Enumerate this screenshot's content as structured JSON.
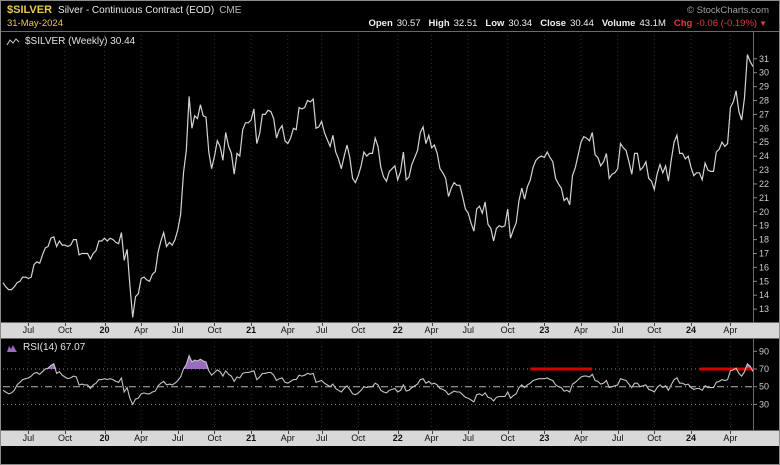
{
  "header": {
    "symbol": "$SILVER",
    "title": "Silver - Continuous Contract (EOD)",
    "exchange": "CME",
    "copyright": "© StockCharts.com",
    "date": "31-May-2024",
    "quote": [
      {
        "label": "Open",
        "value": "30.57"
      },
      {
        "label": "High",
        "value": "32.51"
      },
      {
        "label": "Low",
        "value": "30.34"
      },
      {
        "label": "Close",
        "value": "30.44"
      },
      {
        "label": "Volume",
        "value": "43.1M"
      },
      {
        "label": "Chg",
        "value": "-0.06 (-0.19%)",
        "direction": "down"
      }
    ]
  },
  "price_panel": {
    "legend": "$SILVER (Weekly) 30.44",
    "y_ticks": [
      31,
      30,
      29,
      28,
      27,
      26,
      25,
      24,
      23,
      22,
      21,
      20,
      19,
      18,
      17,
      16,
      15,
      14,
      13
    ]
  },
  "rsi_panel": {
    "legend": "RSI(14) 67.07",
    "y_ticks": [
      90,
      70,
      50,
      30
    ]
  },
  "colors": {
    "background": "#000000",
    "symbol": "#e8c84a",
    "date": "#e8c84a",
    "title_text": "#e8e8e8",
    "exchange_text": "#b8b8b8",
    "copyright_text": "#a0a0a0",
    "quote_text": "#f0f0f0",
    "change_negative": "#e23b3b",
    "price_line": "#d4d4d4",
    "rsi_line": "#c4c4c4",
    "rsi_fill": "#9b6bbf",
    "overbought_marker": "#d40000",
    "grid": "#303030",
    "axis_text": "#cccccc",
    "axis_strip_bg": "#d8d8d8",
    "axis_strip_text": "#111111",
    "panel_border": "#6a6a6a"
  },
  "chart_data": {
    "type": "line",
    "timeframe": "weekly",
    "title": "$SILVER Silver - Continuous Contract (EOD) CME",
    "x_range": [
      "May-2019",
      "31-May-2024"
    ],
    "price_ylim": [
      12.0,
      33.0
    ],
    "rsi_ylim": [
      0,
      105
    ],
    "rsi_levels": {
      "overbought": 70,
      "midline": 50,
      "oversold": 30
    },
    "x_ticks": [
      {
        "i": 9,
        "label": "Jul",
        "bold": false
      },
      {
        "i": 22,
        "label": "Oct",
        "bold": false
      },
      {
        "i": 36,
        "label": "20",
        "bold": true
      },
      {
        "i": 49,
        "label": "Apr",
        "bold": false
      },
      {
        "i": 62,
        "label": "Jul",
        "bold": false
      },
      {
        "i": 75,
        "label": "Oct",
        "bold": false
      },
      {
        "i": 88,
        "label": "21",
        "bold": true
      },
      {
        "i": 101,
        "label": "Apr",
        "bold": false
      },
      {
        "i": 113,
        "label": "Jul",
        "bold": false
      },
      {
        "i": 126,
        "label": "Oct",
        "bold": false
      },
      {
        "i": 140,
        "label": "22",
        "bold": true
      },
      {
        "i": 152,
        "label": "Apr",
        "bold": false
      },
      {
        "i": 165,
        "label": "Jul",
        "bold": false
      },
      {
        "i": 179,
        "label": "Oct",
        "bold": false
      },
      {
        "i": 192,
        "label": "23",
        "bold": true
      },
      {
        "i": 205,
        "label": "Apr",
        "bold": false
      },
      {
        "i": 218,
        "label": "Jul",
        "bold": false
      },
      {
        "i": 231,
        "label": "Oct",
        "bold": false
      },
      {
        "i": 244,
        "label": "24",
        "bold": true
      },
      {
        "i": 258,
        "label": "Apr",
        "bold": false
      }
    ],
    "annotations": [
      {
        "type": "hline_segment",
        "panel": "rsi",
        "y": 70,
        "from_index": 187,
        "to_index": 209
      },
      {
        "type": "hline_segment",
        "panel": "rsi",
        "y": 70,
        "from_index": 247,
        "to_index": 266
      }
    ],
    "series": [
      {
        "name": "$SILVER weekly close",
        "last": 30.44,
        "values": [
          14.9,
          14.6,
          14.4,
          14.4,
          14.6,
          14.9,
          15.0,
          15.3,
          15.3,
          15.2,
          15.3,
          16.2,
          16.4,
          16.3,
          16.9,
          17.4,
          17.5,
          18.1,
          18.2,
          17.5,
          17.9,
          17.6,
          17.6,
          17.5,
          17.6,
          18.0,
          18.0,
          16.9,
          17.0,
          17.0,
          17.0,
          16.6,
          17.0,
          17.2,
          17.9,
          17.9,
          18.1,
          17.9,
          18.1,
          18.0,
          17.8,
          17.7,
          18.5,
          16.5,
          17.3,
          14.7,
          12.4,
          13.9,
          14.1,
          15.2,
          15.3,
          15.1,
          15.0,
          15.5,
          15.7,
          17.1,
          17.9,
          18.5,
          17.5,
          17.8,
          17.6,
          18.0,
          18.7,
          19.8,
          22.8,
          24.4,
          28.3,
          26.0,
          26.9,
          26.7,
          27.7,
          26.9,
          26.8,
          24.3,
          23.1,
          24.0,
          25.1,
          24.7,
          23.7,
          25.7,
          24.7,
          24.2,
          22.7,
          24.2,
          24.0,
          25.9,
          26.4,
          26.4,
          26.6,
          27.4,
          24.9,
          25.6,
          27.0,
          27.0,
          27.3,
          27.2,
          26.7,
          25.3,
          25.9,
          26.2,
          25.1,
          24.9,
          25.3,
          26.0,
          25.9,
          27.5,
          27.4,
          27.5,
          28.0,
          27.9,
          28.1,
          26.0,
          26.1,
          26.5,
          25.7,
          25.2,
          24.7,
          25.5,
          24.3,
          23.8,
          23.1,
          24.0,
          24.8,
          23.9,
          22.4,
          22.1,
          22.6,
          23.3,
          24.3,
          24.0,
          24.2,
          24.2,
          25.3,
          24.7,
          23.2,
          22.5,
          22.2,
          22.9,
          23.1,
          23.3,
          22.3,
          22.9,
          24.3,
          22.3,
          22.5,
          23.4,
          23.9,
          24.4,
          25.7,
          26.1,
          24.9,
          25.5,
          24.6,
          24.8,
          24.2,
          23.1,
          22.8,
          22.4,
          21.1,
          21.7,
          22.1,
          21.9,
          21.9,
          21.1,
          20.2,
          19.9,
          19.2,
          18.6,
          20.2,
          20.4,
          19.9,
          20.7,
          19.1,
          18.8,
          17.9,
          18.8,
          19.0,
          18.9,
          19.0,
          20.2,
          18.1,
          18.7,
          19.2,
          20.8,
          21.7,
          20.9,
          21.8,
          22.3,
          23.2,
          23.7,
          23.9,
          24.0,
          23.9,
          24.3,
          23.9,
          23.6,
          22.4,
          22.0,
          21.7,
          20.8,
          21.0,
          20.5,
          22.6,
          23.2,
          24.1,
          25.0,
          25.4,
          25.3,
          25.1,
          25.7,
          24.1,
          23.9,
          23.3,
          23.6,
          24.2,
          22.4,
          22.7,
          22.8,
          23.1,
          24.9,
          24.6,
          24.4,
          23.6,
          22.7,
          24.2,
          24.2,
          23.0,
          23.2,
          23.6,
          22.4,
          22.2,
          21.6,
          22.7,
          23.4,
          22.8,
          23.3,
          22.2,
          23.7,
          25.0,
          25.5,
          24.2,
          24.2,
          23.8,
          24.0,
          23.2,
          22.6,
          22.8,
          22.8,
          22.3,
          23.5,
          23.0,
          22.9,
          22.9,
          24.3,
          24.5,
          25.0,
          24.7,
          24.9,
          27.5,
          27.9,
          28.7,
          27.2,
          26.6,
          28.2,
          31.3,
          30.8,
          30.44
        ]
      },
      {
        "name": "RSI(14)",
        "last": 67.07,
        "values": [
          46,
          44,
          42,
          43,
          46,
          52,
          55,
          58,
          59,
          60,
          62,
          65,
          66,
          64,
          67,
          70,
          71,
          74,
          76,
          65,
          67,
          63,
          61,
          59,
          60,
          62,
          61,
          52,
          53,
          52,
          52,
          48,
          52,
          54,
          58,
          58,
          59,
          58,
          59,
          58,
          56,
          55,
          60,
          44,
          49,
          37,
          30,
          36,
          37,
          42,
          43,
          42,
          42,
          44,
          45,
          51,
          54,
          56,
          52,
          53,
          52,
          54,
          57,
          61,
          70,
          75,
          85,
          78,
          80,
          79,
          81,
          79,
          78,
          68,
          63,
          66,
          69,
          67,
          62,
          68,
          64,
          62,
          56,
          61,
          60,
          65,
          66,
          66,
          67,
          68,
          58,
          61,
          65,
          65,
          66,
          66,
          63,
          57,
          59,
          60,
          55,
          54,
          56,
          58,
          58,
          63,
          62,
          63,
          65,
          64,
          65,
          55,
          56,
          57,
          54,
          52,
          50,
          53,
          48,
          46,
          44,
          48,
          51,
          47,
          42,
          41,
          43,
          46,
          50,
          49,
          50,
          50,
          54,
          52,
          46,
          44,
          43,
          46,
          47,
          48,
          44,
          46,
          52,
          45,
          46,
          49,
          51,
          53,
          58,
          59,
          54,
          56,
          53,
          54,
          52,
          48,
          47,
          45,
          41,
          43,
          45,
          44,
          44,
          41,
          38,
          37,
          35,
          33,
          41,
          42,
          40,
          43,
          38,
          37,
          34,
          38,
          39,
          39,
          39,
          44,
          37,
          40,
          42,
          49,
          52,
          49,
          52,
          54,
          57,
          58,
          59,
          59,
          59,
          60,
          58,
          57,
          52,
          50,
          49,
          45,
          46,
          44,
          53,
          55,
          58,
          61,
          62,
          62,
          61,
          64,
          57,
          56,
          53,
          54,
          57,
          49,
          50,
          51,
          52,
          59,
          58,
          57,
          53,
          49,
          54,
          54,
          50,
          51,
          52,
          47,
          46,
          44,
          49,
          52,
          49,
          51,
          46,
          52,
          58,
          60,
          54,
          54,
          52,
          53,
          49,
          47,
          48,
          48,
          46,
          51,
          49,
          49,
          49,
          55,
          56,
          58,
          57,
          58,
          68,
          69,
          71,
          65,
          62,
          67,
          76,
          73,
          67.07
        ]
      }
    ]
  }
}
